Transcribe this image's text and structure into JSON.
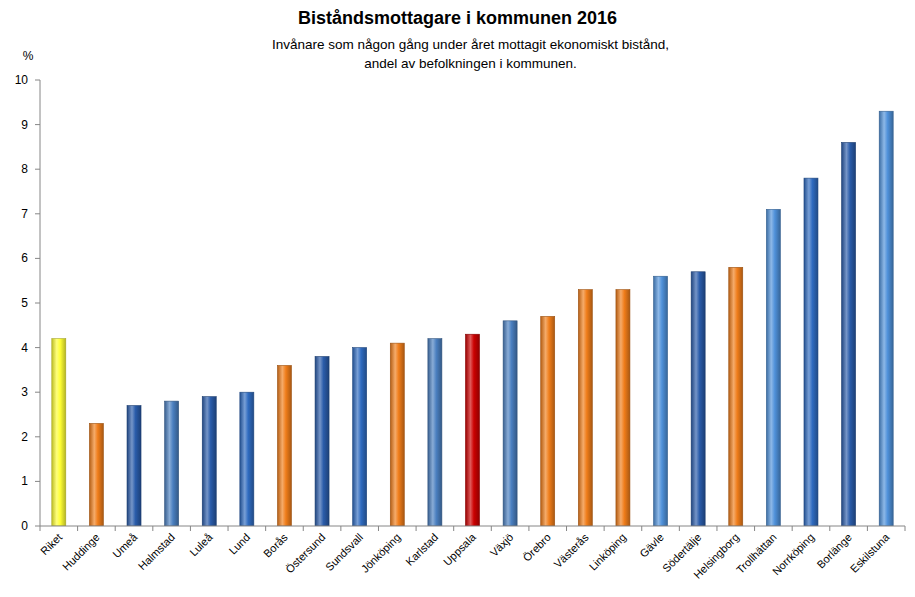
{
  "chart_data": {
    "type": "bar",
    "title": "Biståndsmottagare i kommunen 2016",
    "subtitle": "Invånare som någon gång under året mottagit ekonomiskt bistånd, andel av befolkningen i kommunen.",
    "y_label": "%",
    "categories": [
      "Riket",
      "Huddinge",
      "Umeå",
      "Halmstad",
      "Luleå",
      "Lund",
      "Borås",
      "Östersund",
      "Sundsvall",
      "Jönköping",
      "Karlstad",
      "Uppsala",
      "Växjö",
      "Örebro",
      "Västerås",
      "Linköping",
      "Gävle",
      "Södertälje",
      "Helsingborg",
      "Trollhättan",
      "Norrköping",
      "Borlänge",
      "Eskilstuna"
    ],
    "values": [
      4.2,
      2.3,
      2.7,
      2.8,
      2.9,
      3.0,
      3.6,
      3.8,
      4.0,
      4.1,
      4.2,
      4.3,
      4.6,
      4.7,
      5.3,
      5.3,
      5.6,
      5.7,
      5.8,
      7.1,
      7.8,
      8.6,
      9.3
    ],
    "colors": [
      "#ffff33",
      "#f07d1a",
      "#2a5caa",
      "#4a7fc0",
      "#2a5caa",
      "#2f6bc0",
      "#f07d1a",
      "#2a5caa",
      "#2f6bc0",
      "#f07d1a",
      "#4a7fc0",
      "#cc0000",
      "#4a7fc0",
      "#f07d1a",
      "#f07d1a",
      "#f07d1a",
      "#4f91da",
      "#2a5caa",
      "#f07d1a",
      "#4f91da",
      "#2f6bc0",
      "#2a5caa",
      "#4f91da"
    ],
    "ylim": [
      0,
      10
    ],
    "yticks": [
      0,
      1,
      2,
      3,
      4,
      5,
      6,
      7,
      8,
      9,
      10
    ],
    "grid": false
  }
}
